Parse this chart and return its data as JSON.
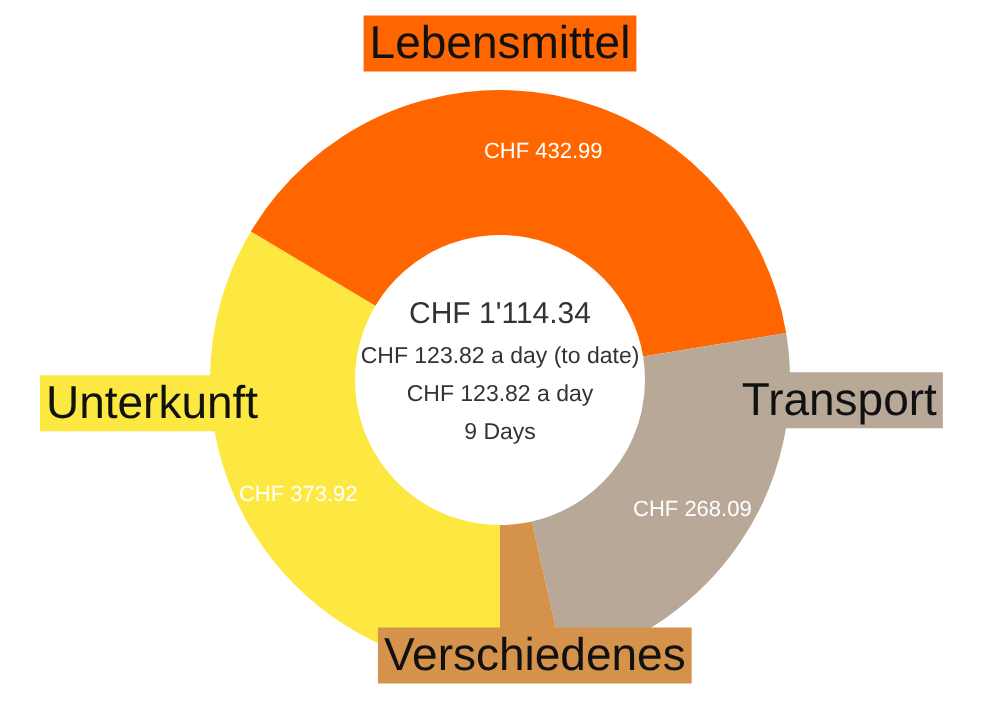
{
  "chart_data": {
    "type": "donut",
    "categories": [
      "Unterkunft",
      "Lebensmittel",
      "Transport",
      "Verschiedenes"
    ],
    "values": [
      373.92,
      432.99,
      268.09,
      39.34
    ],
    "colors": [
      "#fce840",
      "#ff6600",
      "#b8a898",
      "#d4924a"
    ],
    "value_labels": [
      "CHF 373.92",
      "CHF 432.99",
      "CHF 268.09",
      null
    ],
    "annotations": [
      "CHF 1'114.34",
      "CHF 123.82 a day (to date)",
      "CHF 123.82 a day",
      "9 Days"
    ]
  }
}
